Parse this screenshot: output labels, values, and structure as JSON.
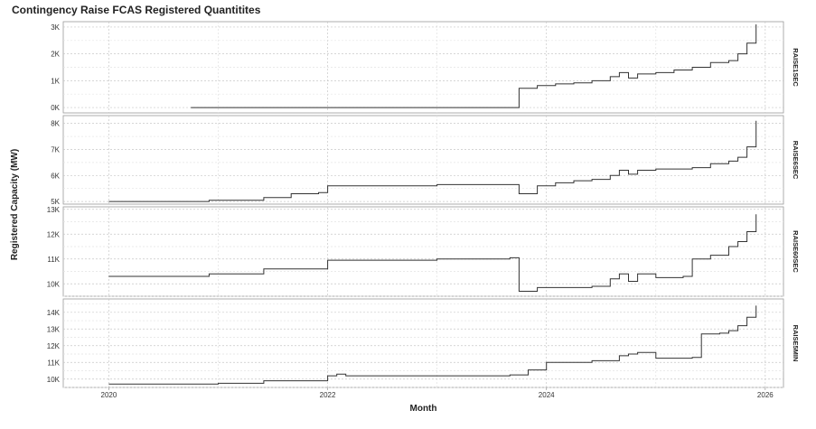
{
  "chart_data": {
    "type": "line",
    "title": "Contingency Raise FCAS Registered Quantitites",
    "xlabel": "Month",
    "ylabel": "Registered Capacity (MW)",
    "x_ticks": [
      "2020",
      "2022",
      "2024",
      "2026"
    ],
    "xlim": [
      "2019-08",
      "2026-03"
    ],
    "grid": true,
    "line_color": "#333333",
    "panels": [
      {
        "name": "RAISE1SEC",
        "ylim": [
          -200,
          3200
        ],
        "y_ticks": [
          0,
          1000,
          2000,
          3000
        ],
        "y_tick_labels": [
          "0K",
          "1K",
          "2K",
          "3K"
        ],
        "points": [
          [
            "2020-10",
            0
          ],
          [
            "2021-06",
            0
          ],
          [
            "2022-06",
            0
          ],
          [
            "2023-06",
            0
          ],
          [
            "2023-09",
            0
          ],
          [
            "2023-10",
            720
          ],
          [
            "2023-12",
            820
          ],
          [
            "2024-02",
            880
          ],
          [
            "2024-04",
            920
          ],
          [
            "2024-06",
            1000
          ],
          [
            "2024-08",
            1150
          ],
          [
            "2024-09",
            1300
          ],
          [
            "2024-10",
            1100
          ],
          [
            "2024-11",
            1250
          ],
          [
            "2025-01",
            1300
          ],
          [
            "2025-03",
            1400
          ],
          [
            "2025-05",
            1500
          ],
          [
            "2025-07",
            1680
          ],
          [
            "2025-09",
            1750
          ],
          [
            "2025-10",
            2000
          ],
          [
            "2025-11",
            2400
          ],
          [
            "2025-12",
            3100
          ]
        ]
      },
      {
        "name": "RAISE6SEC",
        "ylim": [
          4900,
          8300
        ],
        "y_ticks": [
          5000,
          6000,
          7000,
          8000
        ],
        "y_tick_labels": [
          "5K",
          "6K",
          "7K",
          "8K"
        ],
        "points": [
          [
            "2020-01",
            5000
          ],
          [
            "2020-12",
            5050
          ],
          [
            "2021-06",
            5150
          ],
          [
            "2021-09",
            5300
          ],
          [
            "2021-12",
            5340
          ],
          [
            "2022-01",
            5600
          ],
          [
            "2022-06",
            5600
          ],
          [
            "2023-01",
            5650
          ],
          [
            "2023-09",
            5650
          ],
          [
            "2023-10",
            5300
          ],
          [
            "2023-12",
            5600
          ],
          [
            "2024-02",
            5720
          ],
          [
            "2024-04",
            5800
          ],
          [
            "2024-06",
            5850
          ],
          [
            "2024-08",
            6000
          ],
          [
            "2024-09",
            6200
          ],
          [
            "2024-10",
            6050
          ],
          [
            "2024-11",
            6200
          ],
          [
            "2025-01",
            6250
          ],
          [
            "2025-05",
            6300
          ],
          [
            "2025-07",
            6450
          ],
          [
            "2025-09",
            6550
          ],
          [
            "2025-10",
            6700
          ],
          [
            "2025-11",
            7100
          ],
          [
            "2025-12",
            8100
          ]
        ]
      },
      {
        "name": "RAISE60SEC",
        "ylim": [
          9500,
          13100
        ],
        "y_ticks": [
          10000,
          11000,
          12000,
          13000
        ],
        "y_tick_labels": [
          "10K",
          "11K",
          "12K",
          "13K"
        ],
        "points": [
          [
            "2020-01",
            10300
          ],
          [
            "2020-06",
            10300
          ],
          [
            "2020-12",
            10400
          ],
          [
            "2021-06",
            10600
          ],
          [
            "2022-01",
            10950
          ],
          [
            "2022-06",
            10950
          ],
          [
            "2023-01",
            11000
          ],
          [
            "2023-09",
            11050
          ],
          [
            "2023-10",
            9700
          ],
          [
            "2023-12",
            9850
          ],
          [
            "2024-02",
            9850
          ],
          [
            "2024-06",
            9900
          ],
          [
            "2024-08",
            10200
          ],
          [
            "2024-09",
            10400
          ],
          [
            "2024-10",
            10100
          ],
          [
            "2024-11",
            10400
          ],
          [
            "2025-01",
            10250
          ],
          [
            "2025-04",
            10300
          ],
          [
            "2025-05",
            11000
          ],
          [
            "2025-07",
            11150
          ],
          [
            "2025-09",
            11500
          ],
          [
            "2025-10",
            11700
          ],
          [
            "2025-11",
            12100
          ],
          [
            "2025-12",
            12800
          ]
        ]
      },
      {
        "name": "RAISE5MIN",
        "ylim": [
          9500,
          14800
        ],
        "y_ticks": [
          10000,
          11000,
          12000,
          13000,
          14000
        ],
        "y_tick_labels": [
          "10K",
          "11K",
          "12K",
          "13K",
          "14K"
        ],
        "points": [
          [
            "2020-01",
            9700
          ],
          [
            "2020-06",
            9700
          ],
          [
            "2021-01",
            9750
          ],
          [
            "2021-06",
            9900
          ],
          [
            "2022-01",
            10200
          ],
          [
            "2022-02",
            10300
          ],
          [
            "2022-03",
            10200
          ],
          [
            "2023-01",
            10200
          ],
          [
            "2023-09",
            10250
          ],
          [
            "2023-11",
            10550
          ],
          [
            "2024-01",
            11000
          ],
          [
            "2024-06",
            11100
          ],
          [
            "2024-09",
            11400
          ],
          [
            "2024-10",
            11500
          ],
          [
            "2024-11",
            11600
          ],
          [
            "2025-01",
            11250
          ],
          [
            "2025-05",
            11300
          ],
          [
            "2025-06",
            12700
          ],
          [
            "2025-08",
            12750
          ],
          [
            "2025-09",
            12900
          ],
          [
            "2025-10",
            13200
          ],
          [
            "2025-11",
            13700
          ],
          [
            "2025-12",
            14400
          ]
        ]
      }
    ]
  }
}
